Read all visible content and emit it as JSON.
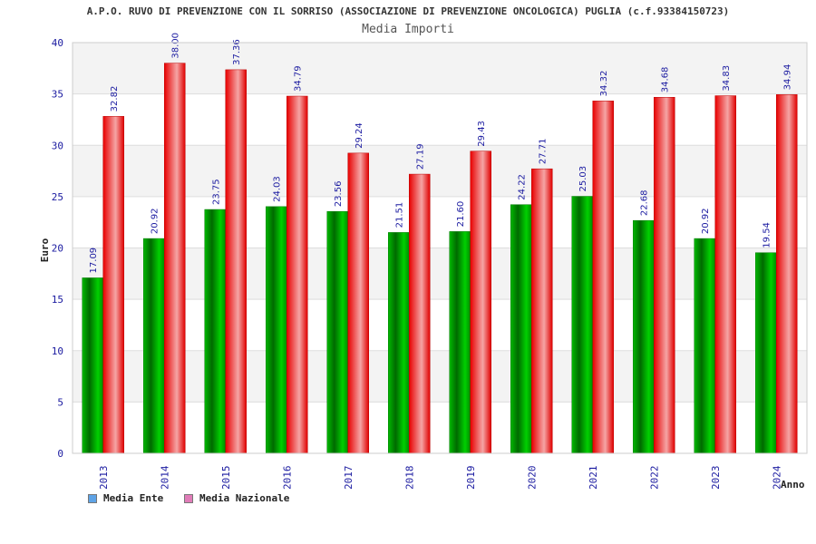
{
  "chart_data": {
    "type": "bar",
    "title": "A.P.O. RUVO DI PREVENZIONE CON IL SORRISO (ASSOCIAZIONE DI PREVENZIONE ONCOLOGICA) PUGLIA (c.f.93384150723)",
    "subtitle": "Media Importi",
    "xlabel": "Anno",
    "ylabel": "Euro",
    "ylim": [
      0,
      40
    ],
    "yticks": [
      0,
      5,
      10,
      15,
      20,
      25,
      30,
      35,
      40
    ],
    "grid": true,
    "legend_position": "bottom-left",
    "categories": [
      "2013",
      "2014",
      "2015",
      "2016",
      "2017",
      "2018",
      "2019",
      "2020",
      "2021",
      "2022",
      "2023",
      "2024"
    ],
    "series": [
      {
        "name": "Media Ente",
        "color": "#00aa00",
        "legend_color": "#5ea3e6",
        "values": [
          17.09,
          20.92,
          23.75,
          24.03,
          23.56,
          21.51,
          21.6,
          24.22,
          25.03,
          22.68,
          20.92,
          19.54
        ],
        "labels": [
          "17.09",
          "20.92",
          "23.75",
          "24.03",
          "23.56",
          "21.51",
          "21.60",
          "24.22",
          "25.03",
          "22.68",
          "20.92",
          "19.54"
        ]
      },
      {
        "name": "Media Nazionale",
        "color": "#ee1111",
        "legend_color": "#e07cb8",
        "values": [
          32.82,
          38.0,
          37.36,
          34.79,
          29.24,
          27.19,
          29.43,
          27.71,
          34.32,
          34.68,
          34.83,
          34.94
        ],
        "labels": [
          "32.82",
          "38.00",
          "37.36",
          "34.79",
          "29.24",
          "27.19",
          "29.43",
          "27.71",
          "34.32",
          "34.68",
          "34.83",
          "34.94"
        ]
      }
    ]
  }
}
